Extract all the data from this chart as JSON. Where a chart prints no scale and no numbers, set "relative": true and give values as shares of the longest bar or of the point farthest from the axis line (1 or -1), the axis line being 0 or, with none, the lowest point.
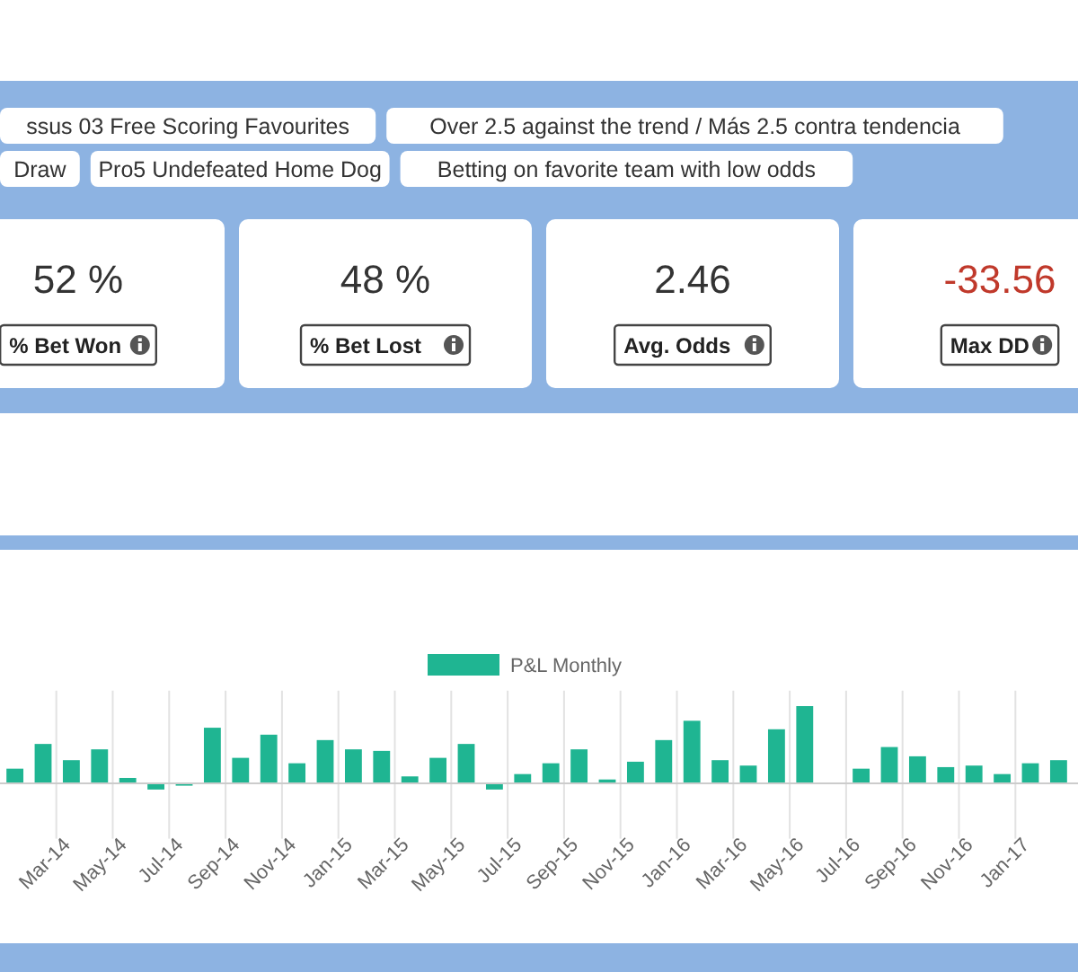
{
  "chart_data": [
    {
      "type": "other",
      "annotations": [
        "ssus 03 Free Scoring Favourites",
        "Over 2.5 against the trend / Más 2.5 contra tendencia",
        "Draw",
        "Pro5 Undefeated Home Dog",
        "Betting on favorite team with low odds"
      ],
      "categories": [
        "% Bet Won",
        "% Bet Lost",
        "Avg. Odds",
        "Max DD"
      ],
      "values": [
        52,
        48,
        2.46,
        -33.56
      ],
      "value_labels": [
        "52 %",
        "48 %",
        "2.46",
        "-33.56"
      ]
    },
    {
      "type": "bar",
      "relative": true,
      "grid": "x",
      "legend": "top",
      "categories": [
        null,
        null,
        "Mar-14",
        null,
        "May-14",
        null,
        "Jul-14",
        null,
        "Sep-14",
        null,
        "Nov-14",
        null,
        "Jan-15",
        null,
        "Mar-15",
        null,
        "May-15",
        null,
        "Jul-15",
        null,
        "Sep-15",
        null,
        "Nov-15",
        null,
        "Jan-16",
        null,
        "Mar-16",
        null,
        "May-16",
        null,
        "Jul-16",
        null,
        "Sep-16",
        null,
        "Nov-16",
        null,
        "Jan-17",
        null
      ],
      "series": [
        {
          "name": "P&L Monthly",
          "color": "#1fb592",
          "values": [
            0.19,
            0.51,
            0.3,
            0.44,
            0.07,
            -0.08,
            -0.03,
            0.72,
            0.33,
            0.63,
            0.26,
            0.56,
            0.44,
            0.42,
            0.09,
            0.33,
            0.51,
            -0.08,
            0.12,
            0.26,
            0.44,
            0.05,
            0.28,
            0.56,
            0.81,
            0.3,
            0.23,
            0.7,
            1,
            0,
            0.19,
            0.47,
            0.35,
            0.21,
            0.23,
            0.12,
            0.26,
            0.3
          ]
        }
      ]
    }
  ]
}
